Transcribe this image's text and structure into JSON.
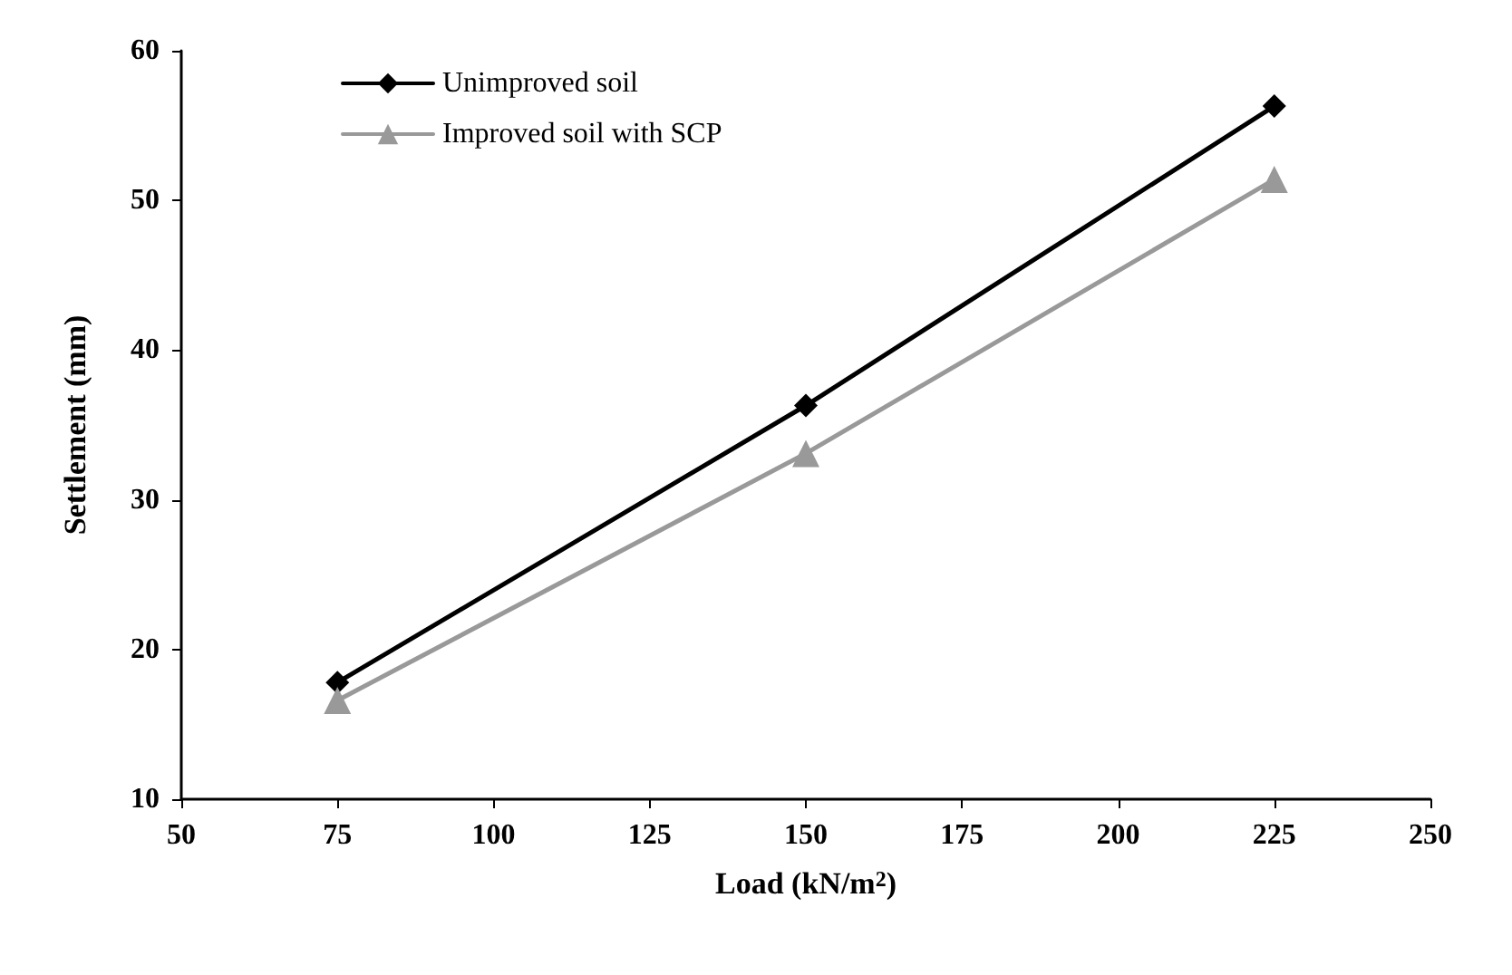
{
  "chart_data": {
    "type": "line",
    "xlabel": "Load (kN/m$^{2}$)",
    "ylabel": "Settlement (mm)",
    "x": [
      75,
      150,
      225
    ],
    "series": [
      {
        "name": "Unimproved soil",
        "color": "#000000",
        "marker": "diamond",
        "values": [
          17.8,
          36.3,
          56.3
        ]
      },
      {
        "name": "Improved soil with SCP",
        "color": "#999999",
        "marker": "triangle",
        "values": [
          16.6,
          33.1,
          51.4
        ]
      }
    ],
    "xlim": [
      50,
      250
    ],
    "xticks": [
      50,
      75,
      100,
      125,
      150,
      175,
      200,
      225,
      250
    ],
    "ylim": [
      10,
      60
    ],
    "yticks": [
      10,
      20,
      30,
      40,
      50,
      60
    ],
    "grid": false,
    "legend": "top left",
    "line_style": "solid"
  }
}
